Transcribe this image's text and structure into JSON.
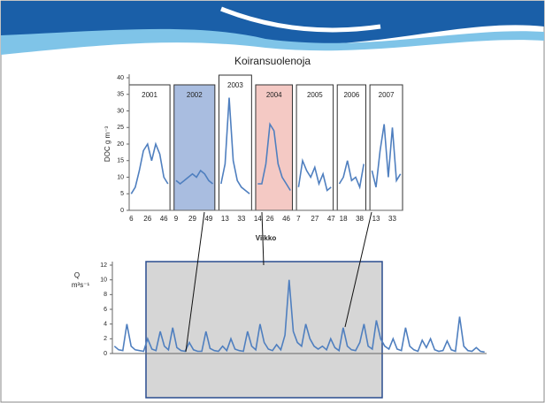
{
  "title": "Koiransuolenoja",
  "charts": [
    {
      "type": "line",
      "ylabel": "DOC g m⁻³",
      "xlabel": "Viikko",
      "color": "#4f7fbf",
      "ylim": [
        0,
        40
      ],
      "yticks": [
        0,
        5,
        10,
        15,
        20,
        25,
        30,
        35,
        40
      ],
      "segments": [
        {
          "label": "2001",
          "color": "#ffffff"
        },
        {
          "label": "2002",
          "color": "#a9bde0"
        },
        {
          "label": "2003",
          "color": "#ffffff"
        },
        {
          "label": "2004",
          "color": "#f4c9c4"
        },
        {
          "label": "2005",
          "color": "#ffffff"
        },
        {
          "label": "2006",
          "color": "#ffffff"
        },
        {
          "label": "2007",
          "color": "#ffffff"
        }
      ],
      "categories": [
        "6",
        null,
        null,
        null,
        "26",
        null,
        null,
        null,
        "46",
        null,
        null,
        "9",
        null,
        null,
        null,
        "29",
        null,
        null,
        null,
        "49",
        null,
        null,
        null,
        "13",
        null,
        null,
        null,
        "33",
        null,
        null,
        null,
        "14",
        null,
        null,
        "26",
        null,
        null,
        null,
        "46",
        null,
        null,
        "7",
        null,
        null,
        null,
        "27",
        null,
        null,
        null,
        "47",
        null,
        null,
        "18",
        null,
        null,
        null,
        "38",
        null,
        null,
        null,
        "13",
        null,
        null,
        null,
        "33",
        null,
        null
      ],
      "values": [
        5,
        7,
        12,
        18,
        20,
        15,
        20,
        17,
        10,
        8,
        null,
        9,
        8,
        9,
        10,
        11,
        10,
        12,
        11,
        9,
        8,
        null,
        8,
        14,
        34,
        15,
        9,
        7,
        6,
        5,
        null,
        8,
        8,
        14,
        26,
        24,
        14,
        10,
        8,
        6,
        null,
        7,
        15,
        12,
        10,
        13,
        8,
        11,
        6,
        7,
        null,
        8,
        10,
        15,
        9,
        10,
        7,
        14,
        null,
        12,
        7,
        18,
        26,
        10,
        25,
        9,
        11
      ]
    },
    {
      "type": "line",
      "ylabel": [
        "Q",
        "m³s⁻¹"
      ],
      "color": "#4f7fbf",
      "ylim": [
        0,
        12
      ],
      "yticks": [
        0,
        2,
        4,
        6,
        8,
        10,
        12
      ],
      "values": [
        1,
        0.5,
        0.4,
        4,
        1,
        0.5,
        0.4,
        0.3,
        2,
        0.6,
        0.4,
        3,
        1,
        0.5,
        3.5,
        0.8,
        0.4,
        0.3,
        1.5,
        0.5,
        0.3,
        0.3,
        3,
        0.7,
        0.4,
        0.3,
        1,
        0.4,
        2,
        0.6,
        0.4,
        0.3,
        3,
        1,
        0.5,
        4,
        1.5,
        0.6,
        0.4,
        1.2,
        0.5,
        2.5,
        10,
        3,
        1.5,
        1,
        4,
        2,
        1,
        0.6,
        1,
        0.5,
        2,
        0.8,
        0.4,
        3.5,
        1,
        0.5,
        0.4,
        1.5,
        4,
        1,
        0.6,
        4.5,
        2,
        1,
        0.6,
        2,
        0.6,
        0.4,
        3.5,
        1,
        0.5,
        0.3,
        1.8,
        0.8,
        2,
        0.5,
        0.3,
        0.4,
        1.7,
        0.5,
        0.3,
        5,
        1,
        0.4,
        0.3,
        0.8,
        0.3,
        0.2
      ]
    }
  ]
}
